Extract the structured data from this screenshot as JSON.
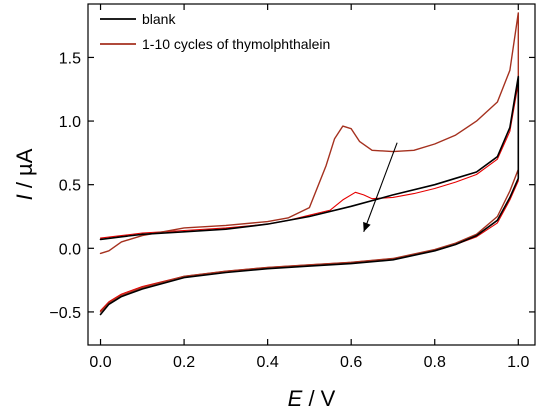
{
  "chart_data": {
    "type": "line",
    "title": "",
    "xlabel": {
      "symbol": "E",
      "unit": " / V"
    },
    "ylabel": {
      "symbol": "I",
      "unit": " / µA"
    },
    "xlim": [
      -0.03,
      1.04
    ],
    "ylim": [
      -0.76,
      1.92
    ],
    "x_ticks": [
      0.0,
      0.2,
      0.4,
      0.6,
      0.8,
      1.0
    ],
    "x_tick_labels": [
      "0.0",
      "0.2",
      "0.4",
      "0.6",
      "0.8",
      "1.0"
    ],
    "y_ticks": [
      -0.5,
      0.0,
      0.5,
      1.0,
      1.5
    ],
    "y_tick_labels": [
      "−0.5",
      "0.0",
      "0.5",
      "1.0",
      "1.5"
    ],
    "grid": false,
    "legend_position": "top-left",
    "legend": [
      {
        "label": "blank",
        "color": "#000000"
      },
      {
        "label": "1-10 cycles of thymolphthalein",
        "color": "#a5311f"
      }
    ],
    "annotations": [
      {
        "type": "arrow",
        "from": [
          0.71,
          0.83
        ],
        "to": [
          0.63,
          0.13
        ],
        "color": "#000000"
      }
    ],
    "series": [
      {
        "name": "blank",
        "color": "#000000",
        "width": 1.6,
        "x": [
          0.0,
          0.02,
          0.05,
          0.1,
          0.2,
          0.3,
          0.4,
          0.5,
          0.6,
          0.7,
          0.8,
          0.85,
          0.9,
          0.95,
          0.98,
          1.0,
          1.0,
          0.98,
          0.95,
          0.9,
          0.85,
          0.8,
          0.7,
          0.6,
          0.5,
          0.4,
          0.3,
          0.2,
          0.1,
          0.05,
          0.0
        ],
        "y": [
          -0.52,
          -0.44,
          -0.38,
          -0.32,
          -0.23,
          -0.19,
          -0.16,
          -0.14,
          -0.12,
          -0.09,
          -0.02,
          0.03,
          0.1,
          0.22,
          0.4,
          0.55,
          1.35,
          0.95,
          0.72,
          0.6,
          0.55,
          0.5,
          0.42,
          0.33,
          0.25,
          0.19,
          0.15,
          0.13,
          0.11,
          0.09,
          0.07
        ]
      },
      {
        "name": "1-10 cycles of thymolphthalein",
        "color": "#a5311f",
        "width": 1.4,
        "x": [
          0.0,
          0.02,
          0.05,
          0.1,
          0.2,
          0.3,
          0.4,
          0.5,
          0.6,
          0.7,
          0.8,
          0.85,
          0.9,
          0.95,
          0.98,
          1.0,
          1.0,
          0.98,
          0.95,
          0.9,
          0.85,
          0.8,
          0.75,
          0.7,
          0.65,
          0.62,
          0.6,
          0.58,
          0.56,
          0.54,
          0.5,
          0.45,
          0.4,
          0.3,
          0.2,
          0.1,
          0.05,
          0.02,
          0.0
        ],
        "y": [
          -0.5,
          -0.43,
          -0.37,
          -0.31,
          -0.22,
          -0.18,
          -0.15,
          -0.13,
          -0.11,
          -0.08,
          -0.01,
          0.04,
          0.11,
          0.25,
          0.45,
          0.62,
          1.85,
          1.4,
          1.15,
          1.0,
          0.89,
          0.82,
          0.77,
          0.76,
          0.77,
          0.84,
          0.94,
          0.96,
          0.86,
          0.65,
          0.32,
          0.24,
          0.21,
          0.18,
          0.16,
          0.1,
          0.05,
          -0.02,
          -0.04
        ]
      },
      {
        "name": "",
        "color": "#e60000",
        "width": 1.1,
        "x": [
          0.0,
          0.02,
          0.05,
          0.1,
          0.2,
          0.3,
          0.4,
          0.5,
          0.6,
          0.7,
          0.8,
          0.85,
          0.9,
          0.95,
          0.98,
          1.0,
          1.0,
          0.98,
          0.95,
          0.9,
          0.85,
          0.8,
          0.75,
          0.7,
          0.65,
          0.63,
          0.61,
          0.58,
          0.55,
          0.5,
          0.45,
          0.4,
          0.3,
          0.2,
          0.1,
          0.05,
          0.0
        ],
        "y": [
          -0.49,
          -0.42,
          -0.36,
          -0.3,
          -0.22,
          -0.18,
          -0.15,
          -0.13,
          -0.11,
          -0.08,
          -0.02,
          0.03,
          0.09,
          0.2,
          0.38,
          0.53,
          1.3,
          0.92,
          0.7,
          0.58,
          0.52,
          0.47,
          0.43,
          0.4,
          0.39,
          0.42,
          0.44,
          0.38,
          0.3,
          0.26,
          0.22,
          0.19,
          0.16,
          0.14,
          0.12,
          0.1,
          0.08
        ]
      }
    ]
  }
}
